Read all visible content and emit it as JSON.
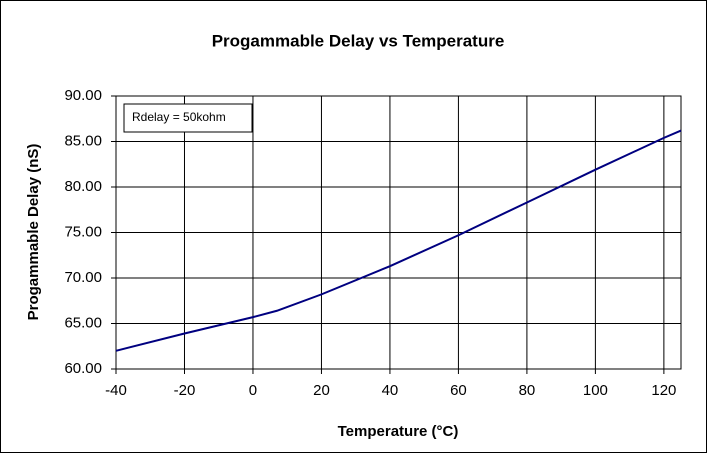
{
  "chart_data": {
    "type": "line",
    "title": "Progammable Delay vs Temperature",
    "xlabel": "Temperature (°C)",
    "ylabel": "Progammable Delay (nS)",
    "annotation": "Rdelay = 50kohm",
    "x": [
      -40,
      -20,
      0,
      7,
      20,
      40,
      60,
      80,
      100,
      120,
      125
    ],
    "series": [
      {
        "name": "Rdelay = 50kohm",
        "color": "#000080",
        "values": [
          62.0,
          63.9,
          65.7,
          66.4,
          68.2,
          71.3,
          74.7,
          78.3,
          81.9,
          85.4,
          86.2
        ]
      }
    ],
    "xlim": [
      -40,
      125
    ],
    "xticks": [
      -40,
      -20,
      0,
      20,
      40,
      60,
      80,
      100,
      120
    ],
    "ylim": [
      60,
      90
    ],
    "yticks": [
      {
        "value": 60,
        "label": "60.00"
      },
      {
        "value": 65,
        "label": "65.00"
      },
      {
        "value": 70,
        "label": "70.00"
      },
      {
        "value": 75,
        "label": "75.00"
      },
      {
        "value": 80,
        "label": "80.00"
      },
      {
        "value": 85,
        "label": "85.00"
      },
      {
        "value": 90,
        "label": "90.00"
      }
    ],
    "grid": true
  }
}
